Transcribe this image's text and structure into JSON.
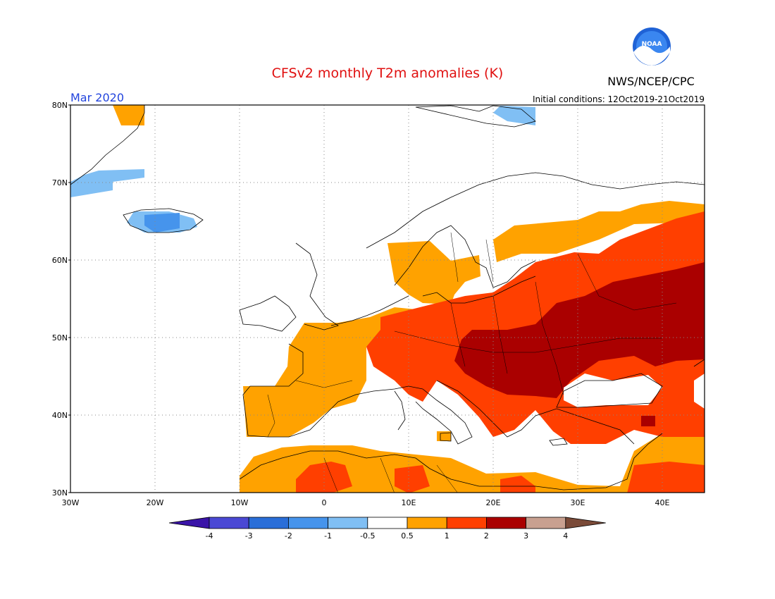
{
  "title": "CFSv2 monthly T2m anomalies (K)",
  "valid_month": "Mar 2020",
  "agency": "NWS/NCEP/CPC",
  "logo_text": "NOAA",
  "initial_conditions": "Initial conditions: 12Oct2019-21Oct2019",
  "map": {
    "lon_range": [
      -30,
      45
    ],
    "lat_range": [
      30,
      80
    ],
    "lon_ticks": [
      "30W",
      "20W",
      "10W",
      "0",
      "10E",
      "20E",
      "30E",
      "40E"
    ],
    "lat_ticks": [
      "30N",
      "40N",
      "50N",
      "60N",
      "70N",
      "80N"
    ],
    "gridlines": true
  },
  "colorbar": {
    "labels": [
      "-4",
      "-3",
      "-2",
      "-1",
      "-0.5",
      "0.5",
      "1",
      "2",
      "3",
      "4"
    ],
    "colors": [
      "#3a14a8",
      "#4a48d4",
      "#2a6ed8",
      "#4694ec",
      "#80bff4",
      "#ffffff",
      "#ffa200",
      "#ff3f00",
      "#aa0000",
      "#c8a090",
      "#7a4a38"
    ]
  },
  "anomaly_regions": [
    {
      "category": "0.5-1",
      "color": "#ffa200",
      "region": "western Europe, Iberia, north Africa, Scandinavia, southern Greenland coast"
    },
    {
      "category": "1-2",
      "color": "#ff3f00",
      "region": "central Europe, eastern Europe, Turkey"
    },
    {
      "category": "2-3",
      "color": "#aa0000",
      "region": "Balkans, Ukraine, western Russia"
    },
    {
      "category": "-1 to -0.5",
      "color": "#80bff4",
      "region": "Iceland, east Greenland, Svalbard"
    }
  ]
}
